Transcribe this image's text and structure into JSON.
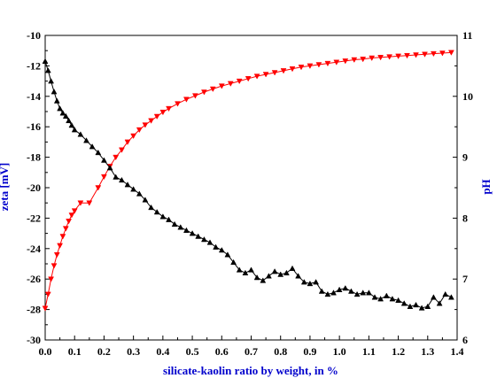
{
  "chart_data": {
    "type": "line",
    "xlabel": "silicate-kaolin ratio by weight, in %",
    "ylabel_left": "zeta [mV]",
    "ylabel_right": "pH",
    "xlim": [
      0.0,
      1.4
    ],
    "ylim_left": [
      -30,
      -10
    ],
    "ylim_right": [
      6,
      11
    ],
    "x_ticks": [
      "0.0",
      "0.1",
      "0.2",
      "0.3",
      "0.4",
      "0.5",
      "0.6",
      "0.7",
      "0.8",
      "0.9",
      "1.0",
      "1.1",
      "1.2",
      "1.3",
      "1.4"
    ],
    "y_left_ticks": [
      "-30",
      "-28",
      "-26",
      "-24",
      "-22",
      "-20",
      "-18",
      "-16",
      "-14",
      "-12",
      "-10"
    ],
    "y_right_ticks": [
      "6",
      "7",
      "8",
      "9",
      "10",
      "11"
    ],
    "grid": false,
    "label_color": "#0000cc",
    "series": [
      {
        "axis": "right",
        "color": "#ff0000",
        "marker": "triangle-down",
        "x": [
          0.0,
          0.01,
          0.02,
          0.03,
          0.04,
          0.05,
          0.06,
          0.07,
          0.08,
          0.09,
          0.1,
          0.12,
          0.15,
          0.18,
          0.2,
          0.22,
          0.24,
          0.26,
          0.28,
          0.3,
          0.32,
          0.34,
          0.36,
          0.38,
          0.4,
          0.42,
          0.45,
          0.48,
          0.51,
          0.54,
          0.57,
          0.6,
          0.63,
          0.66,
          0.69,
          0.72,
          0.75,
          0.78,
          0.81,
          0.84,
          0.87,
          0.9,
          0.93,
          0.96,
          0.99,
          1.02,
          1.05,
          1.08,
          1.11,
          1.14,
          1.17,
          1.2,
          1.23,
          1.26,
          1.29,
          1.32,
          1.35,
          1.38
        ],
        "values": [
          6.52,
          6.75,
          7.0,
          7.22,
          7.4,
          7.55,
          7.7,
          7.83,
          7.95,
          8.05,
          8.12,
          8.25,
          8.25,
          8.5,
          8.68,
          8.85,
          9.0,
          9.12,
          9.25,
          9.35,
          9.45,
          9.53,
          9.6,
          9.67,
          9.74,
          9.8,
          9.88,
          9.95,
          10.01,
          10.07,
          10.12,
          10.17,
          10.21,
          10.25,
          10.29,
          10.33,
          10.36,
          10.39,
          10.42,
          10.45,
          10.48,
          10.5,
          10.52,
          10.54,
          10.56,
          10.58,
          10.6,
          10.61,
          10.63,
          10.64,
          10.65,
          10.66,
          10.67,
          10.68,
          10.69,
          10.7,
          10.71,
          10.72
        ]
      },
      {
        "axis": "left",
        "color": "#000000",
        "marker": "triangle-up",
        "x": [
          0.0,
          0.01,
          0.02,
          0.03,
          0.04,
          0.05,
          0.06,
          0.07,
          0.08,
          0.09,
          0.1,
          0.12,
          0.14,
          0.16,
          0.18,
          0.2,
          0.22,
          0.24,
          0.26,
          0.28,
          0.3,
          0.32,
          0.34,
          0.36,
          0.38,
          0.4,
          0.42,
          0.44,
          0.46,
          0.48,
          0.5,
          0.52,
          0.54,
          0.56,
          0.58,
          0.6,
          0.62,
          0.64,
          0.66,
          0.68,
          0.7,
          0.72,
          0.74,
          0.76,
          0.78,
          0.8,
          0.82,
          0.84,
          0.86,
          0.88,
          0.9,
          0.92,
          0.94,
          0.96,
          0.98,
          1.0,
          1.02,
          1.04,
          1.06,
          1.08,
          1.1,
          1.12,
          1.14,
          1.16,
          1.18,
          1.2,
          1.22,
          1.24,
          1.26,
          1.28,
          1.3,
          1.32,
          1.34,
          1.36,
          1.38
        ],
        "values": [
          -11.7,
          -12.3,
          -13.0,
          -13.7,
          -14.3,
          -14.8,
          -15.1,
          -15.3,
          -15.6,
          -15.9,
          -16.2,
          -16.5,
          -16.9,
          -17.3,
          -17.7,
          -18.2,
          -18.7,
          -19.3,
          -19.5,
          -19.8,
          -20.1,
          -20.4,
          -20.8,
          -21.3,
          -21.6,
          -21.9,
          -22.1,
          -22.4,
          -22.6,
          -22.8,
          -23.0,
          -23.2,
          -23.4,
          -23.6,
          -23.9,
          -24.1,
          -24.4,
          -24.9,
          -25.4,
          -25.6,
          -25.4,
          -25.9,
          -26.1,
          -25.8,
          -25.5,
          -25.7,
          -25.6,
          -25.3,
          -25.8,
          -26.2,
          -26.3,
          -26.2,
          -26.8,
          -27.0,
          -26.9,
          -26.7,
          -26.6,
          -26.8,
          -27.0,
          -26.9,
          -26.9,
          -27.2,
          -27.3,
          -27.1,
          -27.3,
          -27.4,
          -27.6,
          -27.8,
          -27.7,
          -27.9,
          -27.8,
          -27.2,
          -27.6,
          -27.0,
          -27.2
        ]
      }
    ]
  }
}
